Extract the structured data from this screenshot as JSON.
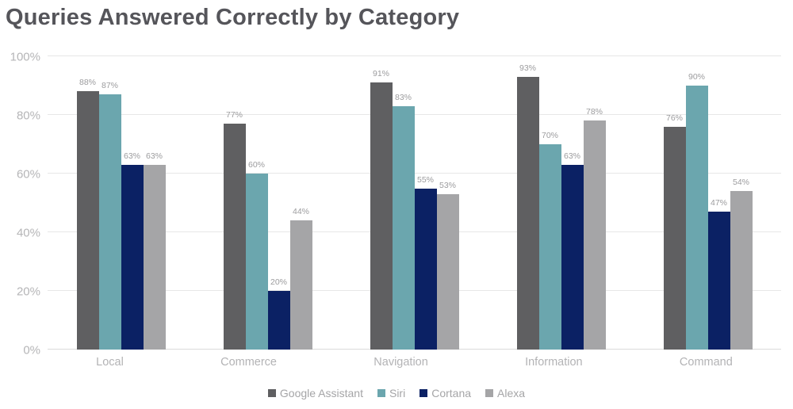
{
  "title": "Queries Answered Correctly by Category",
  "chart_data": {
    "type": "bar",
    "title": "Queries Answered Correctly by Category",
    "categories": [
      "Local",
      "Commerce",
      "Navigation",
      "Information",
      "Command"
    ],
    "series": [
      {
        "name": "Google Assistant",
        "color": "#5f5f61",
        "values": [
          88,
          77,
          91,
          93,
          76
        ]
      },
      {
        "name": "Siri",
        "color": "#6ba6ae",
        "values": [
          87,
          60,
          83,
          70,
          90
        ]
      },
      {
        "name": "Cortana",
        "color": "#0b2164",
        "values": [
          63,
          20,
          55,
          63,
          47
        ]
      },
      {
        "name": "Alexa",
        "color": "#a5a5a7",
        "values": [
          63,
          44,
          53,
          78,
          54
        ]
      }
    ],
    "xlabel": "",
    "ylabel": "",
    "ylim": [
      0,
      100
    ],
    "yticks": [
      "0%",
      "20%",
      "40%",
      "60%",
      "80%",
      "100%"
    ],
    "grid": true,
    "legend_position": "bottom",
    "value_label_suffix": "%"
  },
  "palette": {
    "title_text": "#55555a",
    "axis_text": "#b5b5b7",
    "value_label_text": "#9c9c9e",
    "gridline": "#e7e7e7",
    "background": "#ffffff"
  }
}
